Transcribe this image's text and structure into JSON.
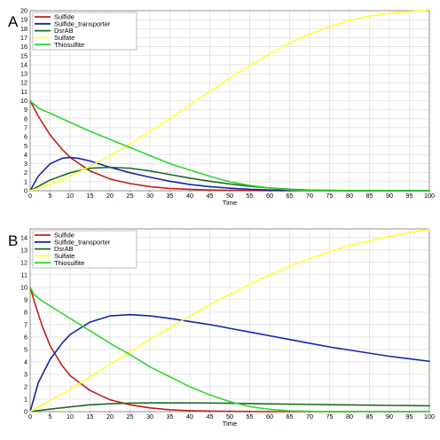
{
  "chart_data": [
    {
      "panel": "A",
      "type": "line",
      "xlabel": "Time",
      "ylabel": "",
      "xlim": [
        0,
        100
      ],
      "ylim": [
        0,
        20
      ],
      "xticks": [
        0,
        5,
        10,
        15,
        20,
        25,
        30,
        35,
        40,
        45,
        50,
        55,
        60,
        65,
        70,
        75,
        80,
        85,
        90,
        95,
        100
      ],
      "yticks": [
        0,
        1,
        2,
        3,
        4,
        5,
        6,
        7,
        8,
        9,
        10,
        11,
        12,
        13,
        14,
        15,
        16,
        17,
        18,
        19,
        20
      ],
      "grid": true,
      "legend_position": "top-left",
      "series": [
        {
          "name": "Sulfide",
          "color": "#c0201a",
          "x": [
            0,
            2,
            5,
            8,
            10,
            15,
            20,
            25,
            30,
            35,
            40,
            45,
            50,
            60,
            70,
            80,
            100
          ],
          "y": [
            10,
            8.3,
            6.2,
            4.6,
            3.7,
            2.2,
            1.3,
            0.8,
            0.45,
            0.25,
            0.15,
            0.08,
            0.04,
            0.01,
            0,
            0,
            0
          ]
        },
        {
          "name": "Sulfide_transporter",
          "color": "#1626a8",
          "x": [
            0,
            2,
            5,
            8,
            10,
            12,
            15,
            20,
            25,
            30,
            35,
            40,
            45,
            50,
            55,
            60,
            70,
            80,
            100
          ],
          "y": [
            0,
            1.6,
            3.0,
            3.6,
            3.7,
            3.6,
            3.3,
            2.6,
            2.0,
            1.5,
            1.05,
            0.7,
            0.45,
            0.28,
            0.15,
            0.08,
            0.02,
            0,
            0
          ]
        },
        {
          "name": "DsrAB",
          "color": "#1c6b1c",
          "x": [
            0,
            5,
            10,
            15,
            20,
            25,
            30,
            35,
            40,
            45,
            50,
            55,
            60,
            65,
            70,
            80,
            100
          ],
          "y": [
            0,
            1.2,
            2.0,
            2.5,
            2.6,
            2.5,
            2.2,
            1.8,
            1.4,
            1.05,
            0.75,
            0.5,
            0.3,
            0.15,
            0.07,
            0.02,
            0
          ]
        },
        {
          "name": "Sulfate",
          "color": "#ffff33",
          "x": [
            0,
            5,
            10,
            15,
            20,
            25,
            30,
            35,
            40,
            45,
            50,
            55,
            60,
            65,
            70,
            75,
            80,
            85,
            90,
            95,
            100
          ],
          "y": [
            0,
            0.7,
            1.6,
            2.7,
            3.9,
            5.2,
            6.6,
            8.0,
            9.5,
            11.0,
            12.5,
            13.9,
            15.2,
            16.4,
            17.4,
            18.2,
            18.9,
            19.4,
            19.7,
            19.9,
            20.1
          ]
        },
        {
          "name": "Thiosulfite",
          "color": "#2ed82e",
          "x": [
            0,
            2,
            5,
            10,
            15,
            20,
            25,
            30,
            35,
            40,
            45,
            50,
            55,
            60,
            65,
            70,
            80,
            100
          ],
          "y": [
            10,
            9.2,
            8.6,
            7.6,
            6.6,
            5.7,
            4.8,
            3.9,
            3.0,
            2.3,
            1.6,
            1.0,
            0.6,
            0.3,
            0.1,
            0.02,
            0,
            0
          ]
        }
      ]
    },
    {
      "panel": "B",
      "type": "line",
      "xlabel": "Time",
      "ylabel": "",
      "xlim": [
        0,
        100
      ],
      "ylim": [
        0,
        14.7
      ],
      "xticks": [
        0,
        5,
        10,
        15,
        20,
        25,
        30,
        35,
        40,
        45,
        50,
        55,
        60,
        65,
        70,
        75,
        80,
        85,
        90,
        95,
        100
      ],
      "yticks": [
        0,
        1,
        2,
        3,
        4,
        5,
        6,
        7,
        8,
        9,
        10,
        11,
        12,
        13,
        14
      ],
      "grid": true,
      "legend_position": "top-left",
      "series": [
        {
          "name": "Sulfide",
          "color": "#c0201a",
          "x": [
            0,
            1,
            3,
            5,
            8,
            10,
            15,
            20,
            25,
            30,
            35,
            40,
            45,
            50,
            60,
            100
          ],
          "y": [
            10,
            8.9,
            6.9,
            5.3,
            3.7,
            2.9,
            1.7,
            0.95,
            0.55,
            0.3,
            0.15,
            0.08,
            0.04,
            0.02,
            0,
            0
          ]
        },
        {
          "name": "Sulfide_transporter",
          "color": "#1626a8",
          "x": [
            0,
            2,
            5,
            8,
            10,
            15,
            20,
            25,
            30,
            35,
            40,
            45,
            50,
            55,
            60,
            65,
            70,
            75,
            80,
            85,
            90,
            95,
            100
          ],
          "y": [
            0,
            2.3,
            4.2,
            5.5,
            6.2,
            7.2,
            7.7,
            7.8,
            7.7,
            7.5,
            7.25,
            7.0,
            6.7,
            6.4,
            6.1,
            5.8,
            5.5,
            5.2,
            4.95,
            4.7,
            4.45,
            4.25,
            4.05
          ]
        },
        {
          "name": "DsrAB",
          "color": "#1c6b1c",
          "x": [
            0,
            5,
            10,
            15,
            20,
            25,
            30,
            35,
            40,
            45,
            50,
            60,
            70,
            80,
            90,
            100
          ],
          "y": [
            0,
            0.2,
            0.38,
            0.55,
            0.63,
            0.68,
            0.7,
            0.7,
            0.7,
            0.69,
            0.67,
            0.62,
            0.58,
            0.54,
            0.5,
            0.47
          ]
        },
        {
          "name": "Sulfate",
          "color": "#ffff33",
          "x": [
            0,
            5,
            10,
            15,
            20,
            25,
            30,
            35,
            40,
            45,
            50,
            55,
            60,
            65,
            70,
            75,
            80,
            85,
            90,
            95,
            100
          ],
          "y": [
            0,
            0.9,
            1.8,
            2.8,
            3.8,
            4.8,
            5.8,
            6.75,
            7.7,
            8.6,
            9.45,
            10.25,
            11.0,
            11.7,
            12.3,
            12.85,
            13.35,
            13.75,
            14.1,
            14.4,
            14.65
          ]
        },
        {
          "name": "Thiosulfite",
          "color": "#2ed82e",
          "x": [
            0,
            1,
            3,
            5,
            10,
            15,
            20,
            25,
            30,
            35,
            40,
            45,
            50,
            55,
            60,
            65,
            70,
            80,
            100
          ],
          "y": [
            10,
            9.4,
            8.9,
            8.5,
            7.5,
            6.5,
            5.5,
            4.6,
            3.6,
            2.8,
            2.0,
            1.35,
            0.8,
            0.4,
            0.18,
            0.06,
            0.02,
            0,
            0
          ]
        }
      ]
    }
  ]
}
